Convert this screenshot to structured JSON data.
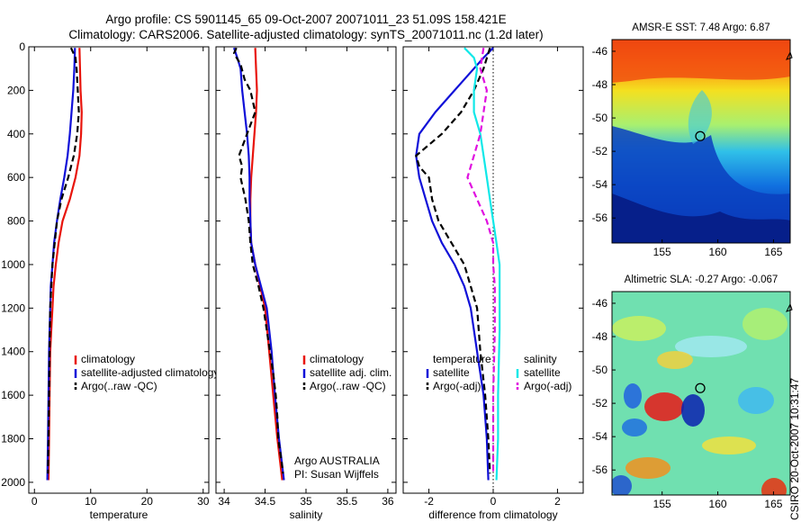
{
  "header": {
    "line1": "Argo profile: CS 5901145_65 09-Oct-2007 20071011_23 51.09S 158.421E",
    "line2": "Climatology: CARS2006. Satellite-adjusted climatology: synTS_20071011.nc (1.2d later)"
  },
  "side_credit": "CSIRO 20-Oct-2007 10:31:47",
  "colors": {
    "red": "#e8140c",
    "blue": "#1010d8",
    "black": "#000000",
    "cyan": "#10e8e8",
    "magenta": "#e010e0"
  },
  "chart_data": [
    {
      "type": "line",
      "name": "temperature-profile",
      "xlabel": "temperature",
      "xlim": [
        -1,
        31
      ],
      "ylim": [
        2050,
        0
      ],
      "xticks": [
        0,
        10,
        20,
        30
      ],
      "yticks": [
        0,
        200,
        400,
        600,
        800,
        1000,
        1200,
        1400,
        1600,
        1800,
        2000
      ],
      "legend": [
        "climatology",
        "satellite-adjusted climatology",
        "Argo(..raw -QC)"
      ],
      "series": [
        {
          "name": "climatology",
          "color": "red",
          "style": "solid",
          "points": [
            [
              8.0,
              5
            ],
            [
              8.1,
              100
            ],
            [
              8.2,
              200
            ],
            [
              8.4,
              300
            ],
            [
              8.3,
              400
            ],
            [
              8.0,
              500
            ],
            [
              7.3,
              600
            ],
            [
              6.3,
              700
            ],
            [
              5.0,
              800
            ],
            [
              4.3,
              900
            ],
            [
              3.8,
              1000
            ],
            [
              3.4,
              1100
            ],
            [
              3.2,
              1200
            ],
            [
              3.0,
              1300
            ],
            [
              2.8,
              1400
            ],
            [
              2.7,
              1600
            ],
            [
              2.6,
              1800
            ],
            [
              2.5,
              1990
            ]
          ]
        },
        {
          "name": "satellite-adjusted climatology",
          "color": "blue",
          "style": "solid",
          "points": [
            [
              7.2,
              5
            ],
            [
              7.1,
              100
            ],
            [
              6.9,
              200
            ],
            [
              6.6,
              300
            ],
            [
              6.3,
              400
            ],
            [
              5.9,
              500
            ],
            [
              5.3,
              600
            ],
            [
              4.6,
              700
            ],
            [
              4.0,
              800
            ],
            [
              3.5,
              900
            ],
            [
              3.2,
              1000
            ],
            [
              2.9,
              1100
            ],
            [
              2.8,
              1200
            ],
            [
              2.7,
              1300
            ],
            [
              2.6,
              1400
            ],
            [
              2.5,
              1600
            ],
            [
              2.4,
              1800
            ],
            [
              2.3,
              1990
            ]
          ]
        },
        {
          "name": "Argo(..raw -QC)",
          "color": "black",
          "style": "dashed",
          "points": [
            [
              6.5,
              5
            ],
            [
              7.3,
              50
            ],
            [
              7.5,
              100
            ],
            [
              7.7,
              200
            ],
            [
              7.9,
              300
            ],
            [
              7.6,
              400
            ],
            [
              7.0,
              500
            ],
            [
              6.0,
              600
            ],
            [
              4.8,
              700
            ],
            [
              4.0,
              800
            ],
            [
              3.6,
              900
            ],
            [
              3.2,
              1000
            ],
            [
              3.0,
              1100
            ],
            [
              2.8,
              1200
            ],
            [
              2.7,
              1400
            ],
            [
              2.6,
              1600
            ],
            [
              2.5,
              1800
            ],
            [
              2.4,
              1960
            ]
          ]
        }
      ]
    },
    {
      "type": "line",
      "name": "salinity-profile",
      "xlabel": "salinity",
      "xlim": [
        33.9,
        36.1
      ],
      "ylim": [
        2050,
        0
      ],
      "xticks": [
        34,
        34.5,
        35,
        35.5,
        36
      ],
      "xticklabels": [
        "34",
        "34.5",
        "35",
        "35.5",
        "36"
      ],
      "legend": [
        "climatology",
        "satellite adj. clim.",
        "Argo(..raw -QC)"
      ],
      "annotation": [
        "Argo AUSTRALIA",
        "PI: Susan Wijffels"
      ],
      "series": [
        {
          "name": "climatology",
          "color": "red",
          "style": "solid",
          "points": [
            [
              34.38,
              5
            ],
            [
              34.39,
              100
            ],
            [
              34.4,
              200
            ],
            [
              34.39,
              300
            ],
            [
              34.37,
              400
            ],
            [
              34.35,
              500
            ],
            [
              34.33,
              600
            ],
            [
              34.32,
              700
            ],
            [
              34.32,
              800
            ],
            [
              34.33,
              900
            ],
            [
              34.38,
              1000
            ],
            [
              34.44,
              1100
            ],
            [
              34.5,
              1200
            ],
            [
              34.55,
              1400
            ],
            [
              34.6,
              1600
            ],
            [
              34.65,
              1800
            ],
            [
              34.71,
              1990
            ]
          ]
        },
        {
          "name": "satellite adj. clim.",
          "color": "blue",
          "style": "solid",
          "points": [
            [
              34.12,
              5
            ],
            [
              34.16,
              50
            ],
            [
              34.2,
              100
            ],
            [
              34.22,
              200
            ],
            [
              34.25,
              300
            ],
            [
              34.28,
              400
            ],
            [
              34.3,
              500
            ],
            [
              34.31,
              600
            ],
            [
              34.31,
              700
            ],
            [
              34.32,
              800
            ],
            [
              34.33,
              900
            ],
            [
              34.38,
              1000
            ],
            [
              34.45,
              1100
            ],
            [
              34.52,
              1200
            ],
            [
              34.58,
              1400
            ],
            [
              34.62,
              1600
            ],
            [
              34.67,
              1800
            ],
            [
              34.73,
              1990
            ]
          ]
        },
        {
          "name": "Argo(..raw -QC)",
          "color": "black",
          "style": "dashed",
          "points": [
            [
              34.15,
              5
            ],
            [
              34.12,
              30
            ],
            [
              34.2,
              80
            ],
            [
              34.25,
              150
            ],
            [
              34.32,
              200
            ],
            [
              34.38,
              300
            ],
            [
              34.28,
              400
            ],
            [
              34.18,
              500
            ],
            [
              34.22,
              550
            ],
            [
              34.2,
              600
            ],
            [
              34.26,
              700
            ],
            [
              34.3,
              800
            ],
            [
              34.32,
              900
            ],
            [
              34.35,
              1000
            ],
            [
              34.42,
              1100
            ],
            [
              34.48,
              1200
            ],
            [
              34.52,
              1300
            ],
            [
              34.56,
              1400
            ],
            [
              34.6,
              1500
            ],
            [
              34.63,
              1600
            ],
            [
              34.65,
              1700
            ],
            [
              34.66,
              1800
            ],
            [
              34.7,
              1900
            ],
            [
              34.72,
              1960
            ]
          ]
        }
      ]
    },
    {
      "type": "line",
      "name": "difference-profile",
      "xlabel": "difference from climatology",
      "xlim": [
        -2.8,
        2.8
      ],
      "ylim": [
        2050,
        0
      ],
      "xticks": [
        -2,
        0,
        2
      ],
      "legend_left": {
        "title": "temperature",
        "items": [
          "satellite",
          "Argo(-adj)"
        ]
      },
      "legend_right": {
        "title": "salinity",
        "items": [
          "satellite",
          "Argo(-adj)"
        ]
      },
      "series": [
        {
          "name": "temperature satellite",
          "color": "blue",
          "style": "solid",
          "points": [
            [
              0,
              5
            ],
            [
              -0.3,
              50
            ],
            [
              -0.6,
              100
            ],
            [
              -1.2,
              200
            ],
            [
              -1.8,
              300
            ],
            [
              -2.3,
              400
            ],
            [
              -2.4,
              500
            ],
            [
              -2.3,
              600
            ],
            [
              -2.1,
              700
            ],
            [
              -1.9,
              800
            ],
            [
              -1.6,
              900
            ],
            [
              -1.2,
              1000
            ],
            [
              -0.9,
              1100
            ],
            [
              -0.7,
              1200
            ],
            [
              -0.5,
              1400
            ],
            [
              -0.3,
              1600
            ],
            [
              -0.2,
              1800
            ],
            [
              -0.15,
              1990
            ]
          ]
        },
        {
          "name": "temperature Argo(-adj)",
          "color": "black",
          "style": "dashed",
          "points": [
            [
              -0.1,
              5
            ],
            [
              -0.3,
              100
            ],
            [
              -0.6,
              200
            ],
            [
              -1.0,
              300
            ],
            [
              -1.6,
              400
            ],
            [
              -2.4,
              500
            ],
            [
              -2.3,
              550
            ],
            [
              -2.0,
              600
            ],
            [
              -1.9,
              700
            ],
            [
              -1.7,
              800
            ],
            [
              -1.3,
              900
            ],
            [
              -0.9,
              1000
            ],
            [
              -0.7,
              1100
            ],
            [
              -0.5,
              1200
            ],
            [
              -0.4,
              1400
            ],
            [
              -0.25,
              1600
            ],
            [
              -0.15,
              1800
            ],
            [
              -0.1,
              1960
            ]
          ]
        },
        {
          "name": "salinity satellite",
          "color": "cyan",
          "style": "solid",
          "points": [
            [
              -0.9,
              5
            ],
            [
              -0.6,
              50
            ],
            [
              -0.5,
              100
            ],
            [
              -0.6,
              200
            ],
            [
              -0.6,
              300
            ],
            [
              -0.4,
              400
            ],
            [
              -0.3,
              500
            ],
            [
              -0.2,
              600
            ],
            [
              -0.1,
              700
            ],
            [
              0.0,
              800
            ],
            [
              0.1,
              900
            ],
            [
              0.2,
              1000
            ],
            [
              0.2,
              1100
            ],
            [
              0.2,
              1300
            ],
            [
              0.15,
              1600
            ],
            [
              0.15,
              1800
            ],
            [
              0.1,
              1990
            ]
          ]
        },
        {
          "name": "salinity Argo(-adj)",
          "color": "magenta",
          "style": "dashed",
          "points": [
            [
              -0.3,
              5
            ],
            [
              -0.4,
              100
            ],
            [
              -0.2,
              200
            ],
            [
              -0.3,
              300
            ],
            [
              -0.4,
              400
            ],
            [
              -0.6,
              500
            ],
            [
              -0.8,
              600
            ],
            [
              -0.5,
              700
            ],
            [
              -0.2,
              800
            ],
            [
              0.0,
              900
            ],
            [
              0.0,
              1000
            ],
            [
              0.05,
              1100
            ],
            [
              0.05,
              1300
            ],
            [
              0.0,
              1600
            ],
            [
              0.0,
              1800
            ],
            [
              0.0,
              1960
            ]
          ]
        }
      ]
    },
    {
      "type": "heatmap",
      "name": "amsr-e-sst-map",
      "title": "AMSR-E SST: 7.48 Argo: 6.87",
      "xlim": [
        150.5,
        166.5
      ],
      "ylim": [
        -57.5,
        -45.3
      ],
      "xticks": [
        155,
        160,
        165
      ],
      "yticks": [
        -46,
        -48,
        -50,
        -52,
        -54,
        -56
      ],
      "marker": {
        "lon": 158.421,
        "lat": -51.09
      }
    },
    {
      "type": "heatmap",
      "name": "altimetric-sla-map",
      "title": "Altimetric SLA: -0.27 Argo: -0.067",
      "xlim": [
        150.5,
        166.5
      ],
      "ylim": [
        -57.5,
        -45.3
      ],
      "xticks": [
        155,
        160,
        165
      ],
      "yticks": [
        -46,
        -48,
        -50,
        -52,
        -54,
        -56
      ],
      "marker": {
        "lon": 158.421,
        "lat": -51.09
      }
    }
  ]
}
